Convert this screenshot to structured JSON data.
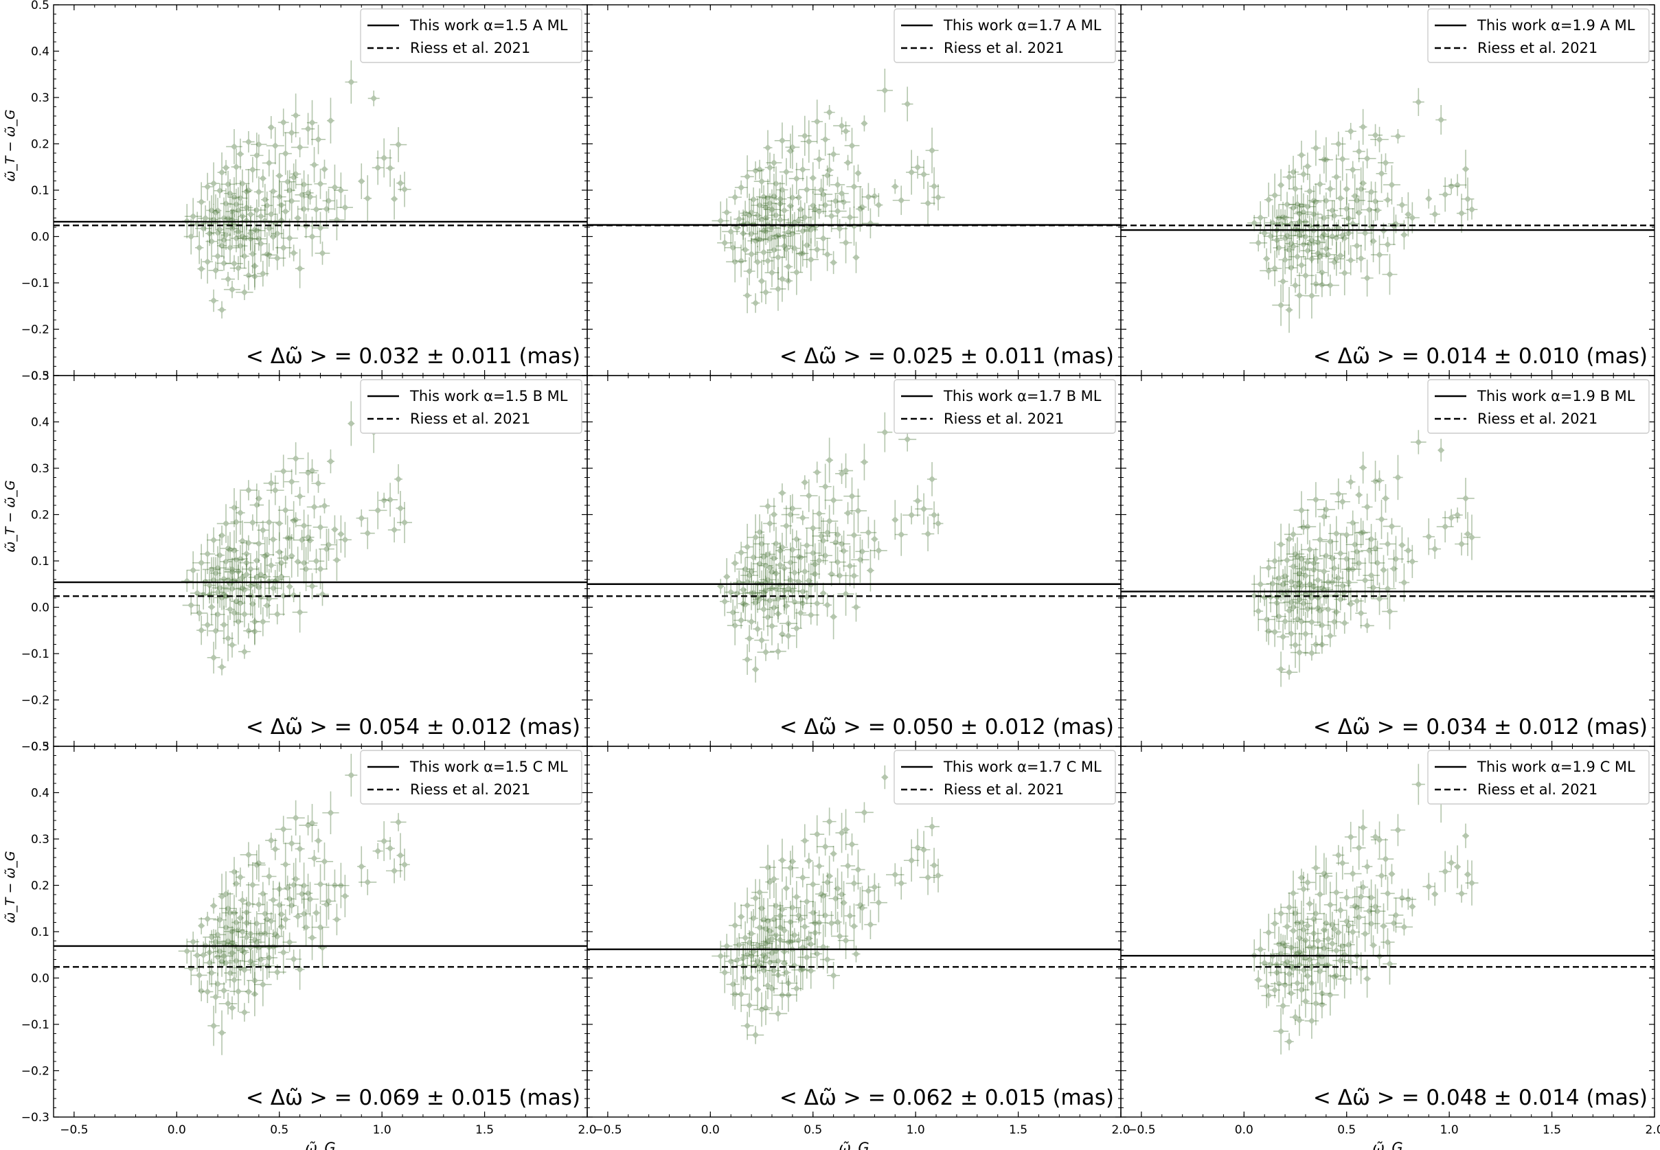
{
  "chart_data": {
    "type": "scatter",
    "layout": "3x3 grid sharing axes",
    "xlabel": "ω̃_G",
    "ylabel": "ω̃_T − ω̃_G",
    "xlim": [
      -0.6,
      2.0
    ],
    "ylim": [
      -0.3,
      0.5
    ],
    "xticks": [
      -0.5,
      0.0,
      0.5,
      1.0,
      1.5,
      2.0
    ],
    "xtick_labels": [
      "−0.5",
      "0.0",
      "0.5",
      "1.0",
      "1.5",
      "2.0"
    ],
    "yticks": [
      -0.3,
      -0.2,
      -0.1,
      0.0,
      0.1,
      0.2,
      0.3,
      0.4,
      0.5
    ],
    "ytick_labels": [
      "−0.3",
      "−0.2",
      "−0.1",
      "0.0",
      "0.1",
      "0.2",
      "0.3",
      "0.4",
      "0.5"
    ],
    "point_color": "#3d6b2a",
    "reference": {
      "label": "Riess et al. 2021",
      "value": 0.024,
      "style": "dashed"
    },
    "panels": [
      {
        "legend": "This work α=1.5 A ML",
        "mean": 0.032,
        "stat": "< Δω̃ > = 0.032 ± 0.011 (mas)",
        "trend": 0.0,
        "shift": 0.0
      },
      {
        "legend": "This work α=1.7 A ML",
        "mean": 0.025,
        "stat": "< Δω̃ > = 0.025 ± 0.011 (mas)",
        "trend": -0.01,
        "shift": 0.0
      },
      {
        "legend": "This work α=1.9 A ML",
        "mean": 0.014,
        "stat": "< Δω̃ > = 0.014 ± 0.010 (mas)",
        "trend": -0.04,
        "shift": -0.01
      },
      {
        "legend": "This work α=1.5 B ML",
        "mean": 0.054,
        "stat": "< Δω̃ > = 0.054 ± 0.012 (mas)",
        "trend": 0.07,
        "shift": 0.02
      },
      {
        "legend": "This work α=1.7 B ML",
        "mean": 0.05,
        "stat": "< Δω̃ > = 0.050 ± 0.012 (mas)",
        "trend": 0.06,
        "shift": 0.015
      },
      {
        "legend": "This work α=1.9 B ML",
        "mean": 0.034,
        "stat": "< Δω̃ > = 0.034 ± 0.012 (mas)",
        "trend": 0.04,
        "shift": 0.005
      },
      {
        "legend": "This work α=1.5 C ML",
        "mean": 0.069,
        "stat": "< Δω̃ > = 0.069 ± 0.015 (mas)",
        "trend": 0.12,
        "shift": 0.03
      },
      {
        "legend": "This work α=1.7 C ML",
        "mean": 0.062,
        "stat": "< Δω̃ > = 0.062 ± 0.015 (mas)",
        "trend": 0.11,
        "shift": 0.025
      },
      {
        "legend": "This work α=1.9 C ML",
        "mean": 0.048,
        "stat": "< Δω̃ > = 0.048 ± 0.014 (mas)",
        "trend": 0.09,
        "shift": 0.015
      }
    ],
    "base_points": [
      [
        0.05,
        0.03
      ],
      [
        0.07,
        -0.01
      ],
      [
        0.08,
        0.05
      ],
      [
        0.1,
        0.02
      ],
      [
        0.11,
        -0.03
      ],
      [
        0.12,
        0.08
      ],
      [
        0.13,
        0.01
      ],
      [
        0.14,
        0.04
      ],
      [
        0.15,
        -0.05
      ],
      [
        0.15,
        0.1
      ],
      [
        0.16,
        0.0
      ],
      [
        0.17,
        0.06
      ],
      [
        0.17,
        -0.02
      ],
      [
        0.18,
        0.12
      ],
      [
        0.18,
        0.03
      ],
      [
        0.19,
        -0.08
      ],
      [
        0.19,
        0.05
      ],
      [
        0.2,
        0.01
      ],
      [
        0.2,
        -0.04
      ],
      [
        0.21,
        0.09
      ],
      [
        0.21,
        0.02
      ],
      [
        0.22,
        -0.01
      ],
      [
        0.22,
        0.14
      ],
      [
        0.23,
        0.04
      ],
      [
        0.23,
        -0.06
      ],
      [
        0.24,
        0.07
      ],
      [
        0.24,
        0.0
      ],
      [
        0.25,
        0.03
      ],
      [
        0.25,
        -0.1
      ],
      [
        0.25,
        0.11
      ],
      [
        0.26,
        0.02
      ],
      [
        0.26,
        -0.03
      ],
      [
        0.27,
        0.06
      ],
      [
        0.27,
        0.01
      ],
      [
        0.28,
        -0.05
      ],
      [
        0.28,
        0.09
      ],
      [
        0.28,
        0.03
      ],
      [
        0.29,
        -0.01
      ],
      [
        0.29,
        0.16
      ],
      [
        0.3,
        0.05
      ],
      [
        0.3,
        -0.07
      ],
      [
        0.3,
        0.02
      ],
      [
        0.31,
        0.08
      ],
      [
        0.31,
        -0.02
      ],
      [
        0.32,
        0.04
      ],
      [
        0.32,
        0.12
      ],
      [
        0.33,
        0.0
      ],
      [
        0.33,
        -0.04
      ],
      [
        0.34,
        0.07
      ],
      [
        0.34,
        0.03
      ],
      [
        0.35,
        -0.09
      ],
      [
        0.35,
        0.1
      ],
      [
        0.36,
        0.01
      ],
      [
        0.36,
        0.05
      ],
      [
        0.37,
        -0.03
      ],
      [
        0.37,
        0.14
      ],
      [
        0.38,
        0.02
      ],
      [
        0.38,
        -0.06
      ],
      [
        0.39,
        0.06
      ],
      [
        0.39,
        0.18
      ],
      [
        0.4,
        0.0
      ],
      [
        0.4,
        0.09
      ],
      [
        0.41,
        -0.02
      ],
      [
        0.41,
        0.04
      ],
      [
        0.42,
        0.12
      ],
      [
        0.42,
        -0.08
      ],
      [
        0.43,
        0.03
      ],
      [
        0.44,
        0.07
      ],
      [
        0.44,
        -0.04
      ],
      [
        0.45,
        0.15
      ],
      [
        0.45,
        0.01
      ],
      [
        0.46,
        0.05
      ],
      [
        0.47,
        -0.01
      ],
      [
        0.47,
        0.1
      ],
      [
        0.48,
        0.2
      ],
      [
        0.48,
        0.02
      ],
      [
        0.49,
        -0.05
      ],
      [
        0.5,
        0.08
      ],
      [
        0.5,
        0.13
      ],
      [
        0.51,
        0.03
      ],
      [
        0.52,
        -0.02
      ],
      [
        0.53,
        0.17
      ],
      [
        0.53,
        0.06
      ],
      [
        0.54,
        0.11
      ],
      [
        0.55,
        0.0
      ],
      [
        0.56,
        0.22
      ],
      [
        0.56,
        0.07
      ],
      [
        0.57,
        -0.03
      ],
      [
        0.58,
        0.14
      ],
      [
        0.59,
        0.04
      ],
      [
        0.6,
        0.19
      ],
      [
        0.6,
        -0.06
      ],
      [
        0.61,
        0.09
      ],
      [
        0.62,
        0.12
      ],
      [
        0.63,
        0.02
      ],
      [
        0.64,
        0.24
      ],
      [
        0.65,
        0.08
      ],
      [
        0.66,
        -0.01
      ],
      [
        0.67,
        0.16
      ],
      [
        0.68,
        0.05
      ],
      [
        0.69,
        0.2
      ],
      [
        0.7,
        0.11
      ],
      [
        0.71,
        -0.04
      ],
      [
        0.72,
        0.15
      ],
      [
        0.74,
        0.07
      ],
      [
        0.75,
        0.26
      ],
      [
        0.77,
        0.1
      ],
      [
        0.78,
        0.03
      ],
      [
        0.8,
        0.09
      ],
      [
        0.82,
        0.07
      ],
      [
        0.85,
        0.33
      ],
      [
        0.9,
        0.12
      ],
      [
        0.93,
        0.09
      ],
      [
        0.96,
        0.3
      ],
      [
        0.98,
        0.14
      ],
      [
        1.01,
        0.16
      ],
      [
        1.04,
        0.15
      ],
      [
        1.06,
        0.09
      ],
      [
        1.08,
        0.2
      ],
      [
        1.09,
        0.12
      ],
      [
        1.11,
        0.1
      ],
      [
        0.18,
        -0.13
      ],
      [
        0.22,
        -0.15
      ],
      [
        0.27,
        -0.11
      ],
      [
        0.33,
        -0.12
      ],
      [
        0.38,
        -0.09
      ],
      [
        0.12,
        -0.06
      ],
      [
        0.28,
        0.19
      ],
      [
        0.35,
        0.21
      ],
      [
        0.46,
        0.23
      ],
      [
        0.52,
        0.25
      ],
      [
        0.24,
        0.15
      ],
      [
        0.31,
        0.17
      ],
      [
        0.4,
        0.19
      ],
      [
        0.58,
        0.27
      ],
      [
        0.66,
        0.24
      ],
      [
        0.2,
        0.06
      ],
      [
        0.26,
        0.09
      ],
      [
        0.29,
        0.07
      ],
      [
        0.32,
        0.01
      ],
      [
        0.36,
        -0.01
      ],
      [
        0.43,
        0.08
      ],
      [
        0.49,
        0.01
      ],
      [
        0.55,
        0.1
      ],
      [
        0.62,
        0.05
      ],
      [
        0.7,
        0.02
      ],
      [
        0.16,
        0.02
      ],
      [
        0.23,
        0.0
      ],
      [
        0.27,
        0.04
      ],
      [
        0.34,
        0.09
      ],
      [
        0.39,
        0.02
      ],
      [
        0.45,
        -0.03
      ],
      [
        0.51,
        0.06
      ],
      [
        0.57,
        0.13
      ],
      [
        0.64,
        0.1
      ],
      [
        0.73,
        0.06
      ]
    ]
  }
}
